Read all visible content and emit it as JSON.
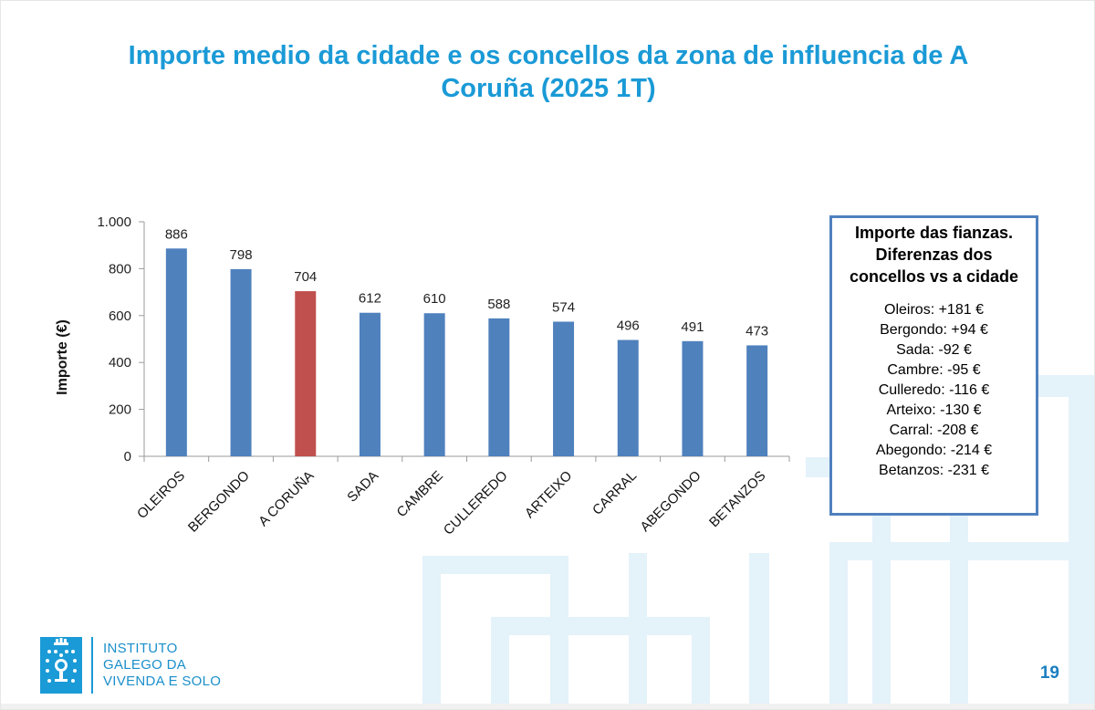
{
  "slide": {
    "title": "Importe medio da cidade e os concellos da zona de influencia de A Coruña (2025 1T)",
    "page_number": "19"
  },
  "chart_data": {
    "type": "bar",
    "title": "Importe medio da cidade e os concellos da zona de influencia de A Coruña (2025 1T)",
    "xlabel": "",
    "ylabel": "Importe (€)",
    "categories": [
      "OLEIROS",
      "BERGONDO",
      "A CORUÑA",
      "SADA",
      "CAMBRE",
      "CULLEREDO",
      "ARTEIXO",
      "CARRAL",
      "ABEGONDO",
      "BETANZOS"
    ],
    "values": [
      886,
      798,
      704,
      612,
      610,
      588,
      574,
      496,
      491,
      473
    ],
    "data_labels": [
      "886",
      "798",
      "704",
      "612",
      "610",
      "588",
      "574",
      "496",
      "491",
      "473"
    ],
    "ylim": [
      0,
      1000
    ],
    "y_ticks": [
      0,
      200,
      400,
      600,
      800,
      1000
    ],
    "y_tick_labels": [
      "0",
      "200",
      "400",
      "600",
      "800",
      "1.000"
    ],
    "grid": false,
    "legend": "none",
    "bar_color": "#4f81bd",
    "highlight_color": "#c0504d",
    "highlight_category": "A CORUÑA"
  },
  "infobox": {
    "title": "Importe das fianzas. Diferenzas dos concellos vs a cidade",
    "items": [
      "Oleiros: +181 €",
      "Bergondo: +94 €",
      "Sada: -92 €",
      "Cambre: -95 €",
      "Culleredo: -116 €",
      "Arteixo: -130 €",
      "Carral: -208 €",
      "Abegondo: -214 €",
      "Betanzos: -231 €"
    ]
  },
  "logo": {
    "lines": [
      "INSTITUTO",
      "GALEGO DA",
      "VIVENDA E SOLO"
    ]
  },
  "colors": {
    "title": "#1a9ad6",
    "accent": "#1a9ad6",
    "box_border": "#4f80bd",
    "decor": "#e3f2fa"
  }
}
